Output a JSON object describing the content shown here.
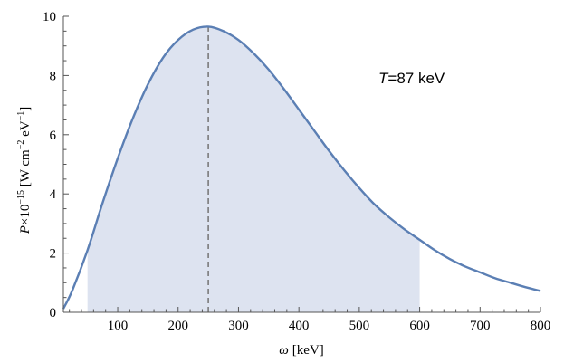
{
  "chart_data": {
    "type": "area",
    "xlabel": {
      "symbol": "ω",
      "unit": "[keV]"
    },
    "ylabel": {
      "symbol": "P",
      "mult": "×10",
      "exp": "−15",
      "unit_a": " [W cm",
      "exp2": "−2",
      "unit_b": " eV",
      "exp3": "−1",
      "unit_c": "]"
    },
    "annotation": {
      "symbol": "T",
      "rest": "=87 keV"
    },
    "xlim": [
      10,
      800
    ],
    "ylim": [
      0,
      10
    ],
    "x_ticks": [
      100,
      200,
      300,
      400,
      500,
      600,
      700,
      800
    ],
    "y_ticks": [
      0,
      2,
      4,
      6,
      8,
      10
    ],
    "shaded_range": [
      50,
      600
    ],
    "peak_marker_x": 250,
    "series": [
      {
        "x": [
          10,
          25,
          50,
          75,
          100,
          125,
          150,
          175,
          200,
          225,
          250,
          275,
          300,
          325,
          350,
          375,
          400,
          425,
          450,
          475,
          500,
          525,
          550,
          575,
          600,
          625,
          650,
          675,
          700,
          725,
          750,
          775,
          800
        ],
        "y": [
          0.12,
          0.75,
          2.1,
          3.7,
          5.2,
          6.55,
          7.7,
          8.6,
          9.2,
          9.55,
          9.65,
          9.5,
          9.2,
          8.75,
          8.2,
          7.55,
          6.85,
          6.15,
          5.45,
          4.8,
          4.2,
          3.65,
          3.2,
          2.8,
          2.45,
          2.1,
          1.8,
          1.55,
          1.35,
          1.15,
          1.0,
          0.85,
          0.72
        ]
      }
    ],
    "colors": {
      "line": "#5b7fb4",
      "fill": "#dde3f0",
      "marker": "#7a7a7a",
      "axis": "#555555"
    },
    "grid": false
  }
}
